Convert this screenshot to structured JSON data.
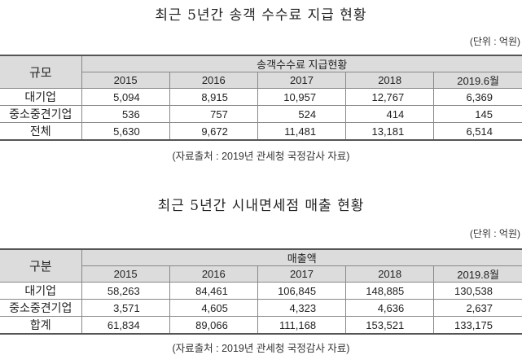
{
  "table1": {
    "title": "최근 5년간 송객 수수료 지급 현황",
    "unit": "(단위 : 억원)",
    "corner": "규모",
    "group_header": "송객수수료 지급현황",
    "columns": [
      "2015",
      "2016",
      "2017",
      "2018",
      "2019.6월"
    ],
    "rows": [
      {
        "label": "대기업",
        "values": [
          "5,094",
          "8,915",
          "10,957",
          "12,767",
          "6,369"
        ]
      },
      {
        "label": "중소중견기업",
        "values": [
          "536",
          "757",
          "524",
          "414",
          "145"
        ]
      },
      {
        "label": "전체",
        "values": [
          "5,630",
          "9,672",
          "11,481",
          "13,181",
          "6,514"
        ]
      }
    ],
    "source": "(자료출처 : 2019년 관세청 국정감사 자료)"
  },
  "table2": {
    "title": "최근 5년간 시내면세점 매출 현황",
    "unit": "(단위 : 억원)",
    "corner": "구분",
    "group_header": "매출액",
    "columns": [
      "2015",
      "2016",
      "2017",
      "2018",
      "2019.8월"
    ],
    "rows": [
      {
        "label": "대기업",
        "values": [
          "58,263",
          "84,461",
          "106,845",
          "148,885",
          "130,538"
        ]
      },
      {
        "label": "중소중견기업",
        "values": [
          "3,571",
          "4,605",
          "4,323",
          "4,636",
          "2,637"
        ]
      },
      {
        "label": "합계",
        "values": [
          "61,834",
          "89,066",
          "111,168",
          "153,521",
          "133,175"
        ]
      }
    ],
    "source": "(자료출처 : 2019년 관세청 국정감사 자료)"
  }
}
